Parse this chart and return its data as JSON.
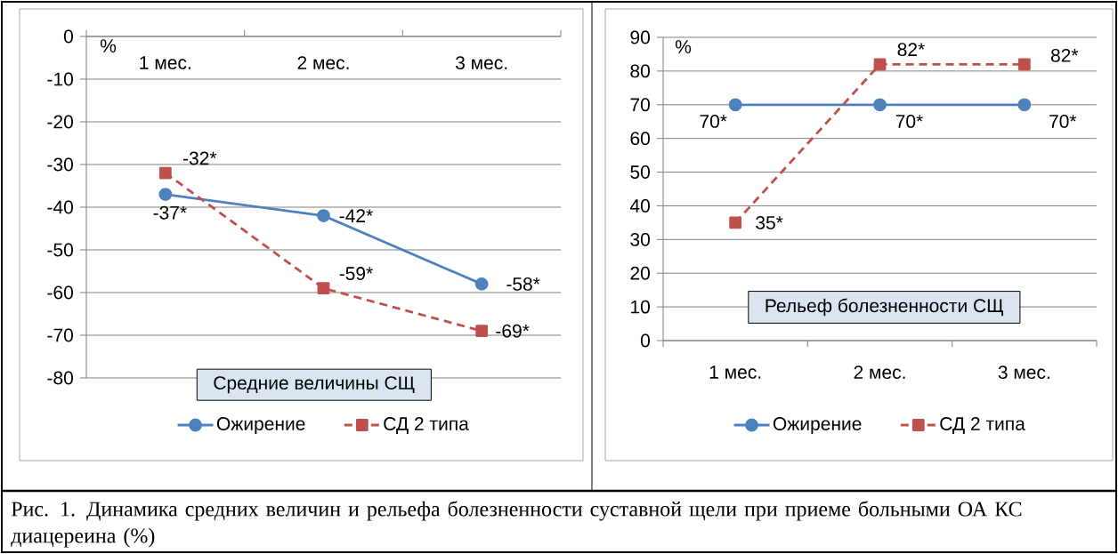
{
  "chart_data": [
    {
      "type": "line",
      "title": "Средние величины СЩ",
      "ylabel": "%",
      "categories": [
        "1 мес.",
        "2 мес.",
        "3 мес."
      ],
      "series": [
        {
          "name": "Ожирение",
          "color": "#4f81bd",
          "marker": "circle",
          "line_style": "solid",
          "values": [
            -37,
            -42,
            -58
          ],
          "value_labels": [
            "-37*",
            "-42*",
            "-58*"
          ]
        },
        {
          "name": "СД 2 типа",
          "color": "#c0504d",
          "marker": "square",
          "line_style": "dashed",
          "values": [
            -32,
            -59,
            -69
          ],
          "value_labels": [
            "-32*",
            "-59*",
            "-69*"
          ]
        }
      ],
      "ylim": [
        -80,
        0
      ],
      "yticks": [
        -80,
        -70,
        -60,
        -50,
        -40,
        -30,
        -20,
        -10,
        0
      ],
      "grid": "y",
      "legend": "bottom",
      "annotations": [
        "Рис. 1. Динамика средних величин и рельефа болезненности суставной щели при приеме больными ОА КС диацереина (%)"
      ]
    },
    {
      "type": "line",
      "title": "Рельеф болезненности  СЩ",
      "ylabel": "%",
      "categories": [
        "1 мес.",
        "2 мес.",
        "3 мес."
      ],
      "series": [
        {
          "name": "Ожирение",
          "color": "#4f81bd",
          "marker": "circle",
          "line_style": "solid",
          "values": [
            70,
            70,
            70
          ],
          "value_labels": [
            "70*",
            "70*",
            "70*"
          ]
        },
        {
          "name": "СД 2 типа",
          "color": "#c0504d",
          "marker": "square",
          "line_style": "dashed",
          "values": [
            35,
            82,
            82
          ],
          "value_labels": [
            "35*",
            "82*",
            "82*"
          ]
        }
      ],
      "ylim": [
        0,
        90
      ],
      "yticks": [
        0,
        10,
        20,
        30,
        40,
        50,
        60,
        70,
        80,
        90
      ],
      "grid": "y",
      "legend": "bottom"
    }
  ]
}
